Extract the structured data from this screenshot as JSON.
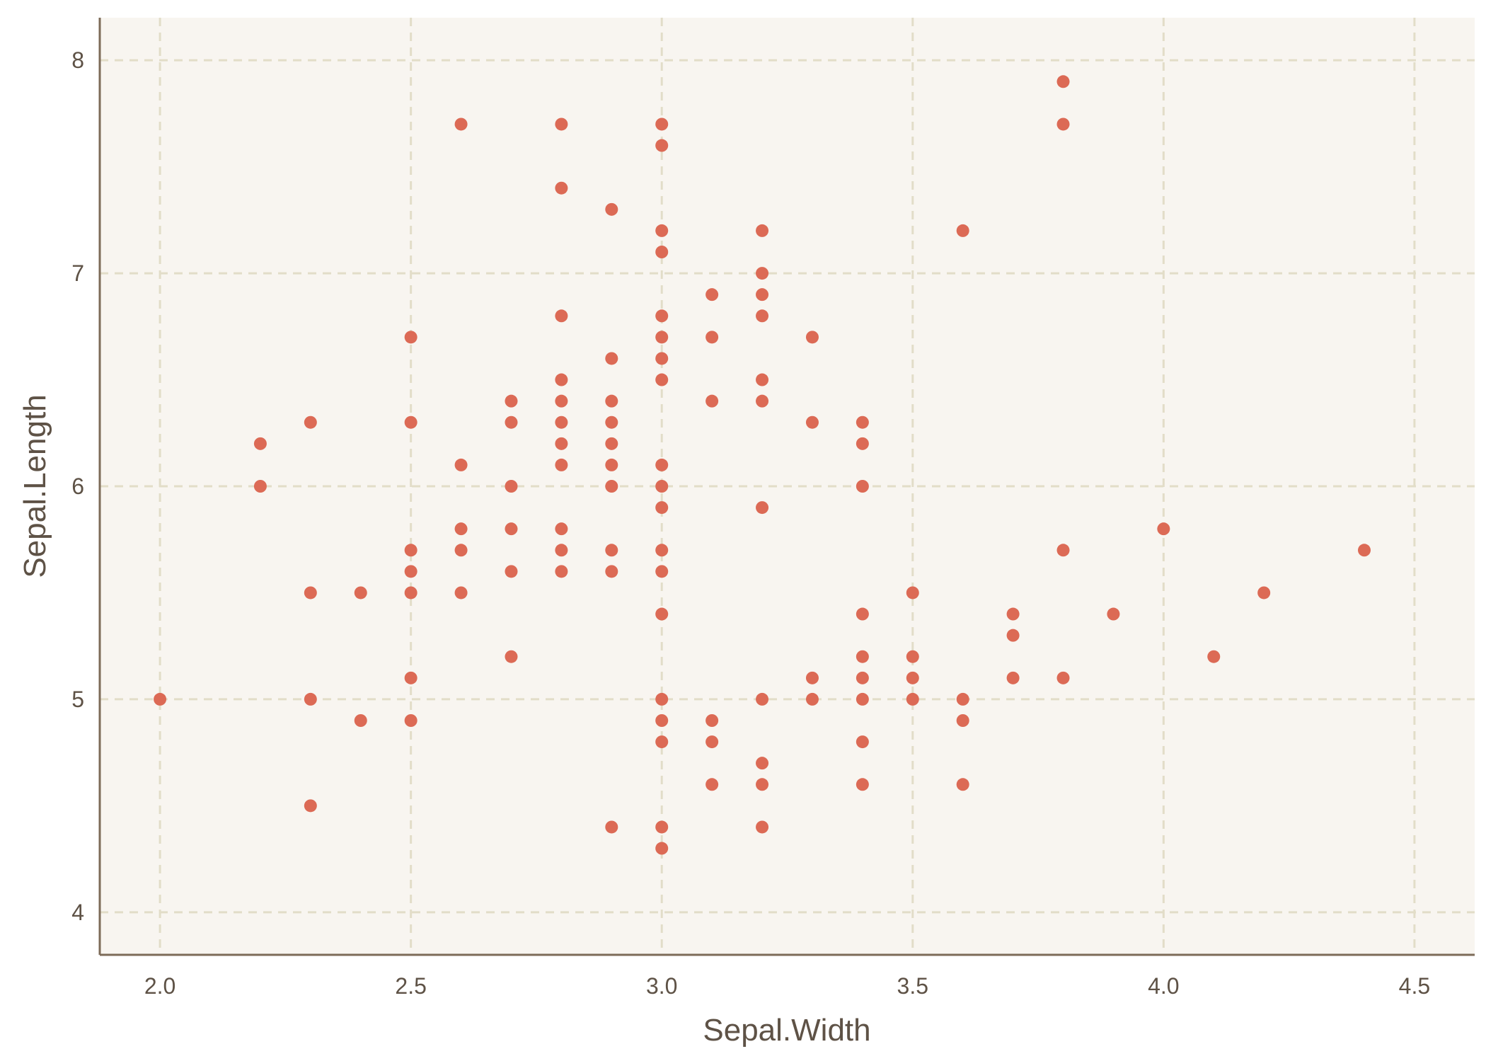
{
  "colors": {
    "panel_background": "#f8f5f0",
    "grid": "#e2ddc8",
    "axis": "#7d6b58",
    "point": "#dc6a55",
    "text": "#5e5246"
  },
  "chart_data": {
    "type": "scatter",
    "title": "",
    "xlabel": "Sepal.Width",
    "ylabel": "Sepal.Length",
    "xlim": [
      1.88,
      4.62
    ],
    "ylim": [
      3.8,
      8.2
    ],
    "xticks": [
      2.0,
      2.5,
      3.0,
      3.5,
      4.0,
      4.5
    ],
    "xtick_labels": [
      "2.0",
      "2.5",
      "3.0",
      "3.5",
      "4.0",
      "4.5"
    ],
    "yticks": [
      4,
      5,
      6,
      7,
      8
    ],
    "ytick_labels": [
      "4",
      "5",
      "6",
      "7",
      "8"
    ],
    "grid": true,
    "grid_style": "dashed",
    "legend": "none",
    "points": [
      [
        2.0,
        5.0
      ],
      [
        2.2,
        6.2
      ],
      [
        2.2,
        6.0
      ],
      [
        2.3,
        6.3
      ],
      [
        2.3,
        5.5
      ],
      [
        2.3,
        5.0
      ],
      [
        2.3,
        4.5
      ],
      [
        2.4,
        5.5
      ],
      [
        2.4,
        4.9
      ],
      [
        2.5,
        6.7
      ],
      [
        2.5,
        6.3
      ],
      [
        2.5,
        5.7
      ],
      [
        2.5,
        5.6
      ],
      [
        2.5,
        5.5
      ],
      [
        2.5,
        5.1
      ],
      [
        2.5,
        4.9
      ],
      [
        2.6,
        7.7
      ],
      [
        2.6,
        6.1
      ],
      [
        2.6,
        5.8
      ],
      [
        2.6,
        5.7
      ],
      [
        2.6,
        5.5
      ],
      [
        2.7,
        6.4
      ],
      [
        2.7,
        6.3
      ],
      [
        2.7,
        6.0
      ],
      [
        2.7,
        5.8
      ],
      [
        2.7,
        5.6
      ],
      [
        2.7,
        5.2
      ],
      [
        2.8,
        7.7
      ],
      [
        2.8,
        7.4
      ],
      [
        2.8,
        6.8
      ],
      [
        2.8,
        6.5
      ],
      [
        2.8,
        6.4
      ],
      [
        2.8,
        6.3
      ],
      [
        2.8,
        6.2
      ],
      [
        2.8,
        6.1
      ],
      [
        2.8,
        5.8
      ],
      [
        2.8,
        5.7
      ],
      [
        2.8,
        5.6
      ],
      [
        2.9,
        7.3
      ],
      [
        2.9,
        6.6
      ],
      [
        2.9,
        6.4
      ],
      [
        2.9,
        6.3
      ],
      [
        2.9,
        6.2
      ],
      [
        2.9,
        6.1
      ],
      [
        2.9,
        6.0
      ],
      [
        2.9,
        5.7
      ],
      [
        2.9,
        5.6
      ],
      [
        2.9,
        4.4
      ],
      [
        3.0,
        7.7
      ],
      [
        3.0,
        7.6
      ],
      [
        3.0,
        7.2
      ],
      [
        3.0,
        7.1
      ],
      [
        3.0,
        6.8
      ],
      [
        3.0,
        6.7
      ],
      [
        3.0,
        6.6
      ],
      [
        3.0,
        6.5
      ],
      [
        3.0,
        6.1
      ],
      [
        3.0,
        6.0
      ],
      [
        3.0,
        5.9
      ],
      [
        3.0,
        5.7
      ],
      [
        3.0,
        5.6
      ],
      [
        3.0,
        5.4
      ],
      [
        3.0,
        5.0
      ],
      [
        3.0,
        4.9
      ],
      [
        3.0,
        4.8
      ],
      [
        3.0,
        4.4
      ],
      [
        3.0,
        4.3
      ],
      [
        3.1,
        6.9
      ],
      [
        3.1,
        6.7
      ],
      [
        3.1,
        6.4
      ],
      [
        3.1,
        4.9
      ],
      [
        3.1,
        4.8
      ],
      [
        3.1,
        4.6
      ],
      [
        3.2,
        7.2
      ],
      [
        3.2,
        7.0
      ],
      [
        3.2,
        6.9
      ],
      [
        3.2,
        6.8
      ],
      [
        3.2,
        6.5
      ],
      [
        3.2,
        6.4
      ],
      [
        3.2,
        5.9
      ],
      [
        3.2,
        5.0
      ],
      [
        3.2,
        4.7
      ],
      [
        3.2,
        4.6
      ],
      [
        3.2,
        4.4
      ],
      [
        3.3,
        6.7
      ],
      [
        3.3,
        6.3
      ],
      [
        3.3,
        5.1
      ],
      [
        3.3,
        5.0
      ],
      [
        3.4,
        6.3
      ],
      [
        3.4,
        6.2
      ],
      [
        3.4,
        6.0
      ],
      [
        3.4,
        5.4
      ],
      [
        3.4,
        5.2
      ],
      [
        3.4,
        5.1
      ],
      [
        3.4,
        5.0
      ],
      [
        3.4,
        4.8
      ],
      [
        3.4,
        4.6
      ],
      [
        3.5,
        5.5
      ],
      [
        3.5,
        5.2
      ],
      [
        3.5,
        5.1
      ],
      [
        3.5,
        5.0
      ],
      [
        3.6,
        7.2
      ],
      [
        3.6,
        5.0
      ],
      [
        3.6,
        4.9
      ],
      [
        3.6,
        4.6
      ],
      [
        3.7,
        5.4
      ],
      [
        3.7,
        5.3
      ],
      [
        3.7,
        5.1
      ],
      [
        3.8,
        7.9
      ],
      [
        3.8,
        7.7
      ],
      [
        3.8,
        5.7
      ],
      [
        3.8,
        5.1
      ],
      [
        3.9,
        5.4
      ],
      [
        4.0,
        5.8
      ],
      [
        4.1,
        5.2
      ],
      [
        4.2,
        5.5
      ],
      [
        4.4,
        5.7
      ]
    ]
  }
}
